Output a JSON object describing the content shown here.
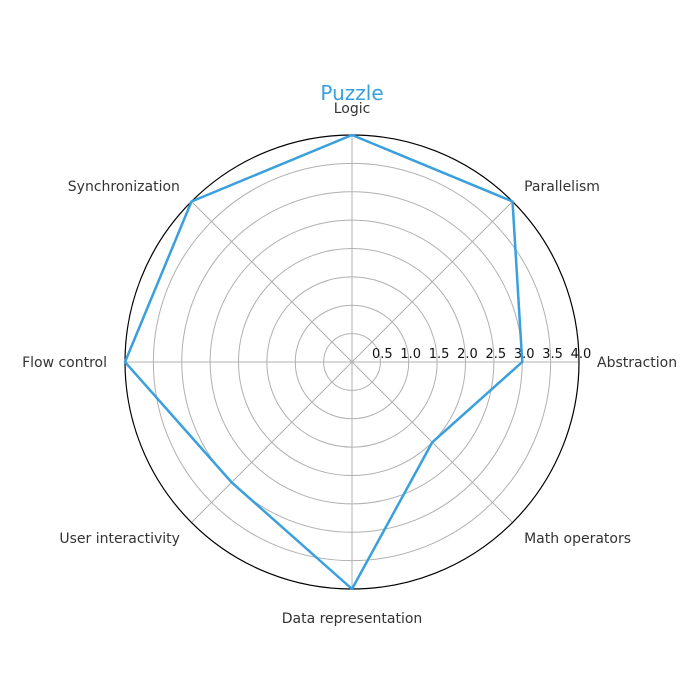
{
  "chart_data": {
    "type": "radar",
    "title": "Puzzle",
    "categories": [
      "Logic",
      "Parallelism",
      "Abstraction",
      "Math operators",
      "Data representation",
      "User interactivity",
      "Flow control",
      "Synchronization"
    ],
    "values": [
      4.0,
      4.0,
      3.0,
      2.0,
      4.0,
      3.0,
      4.0,
      4.0
    ],
    "rlim": [
      0,
      4.0
    ],
    "rticks": [
      "0.5",
      "1.0",
      "1.5",
      "2.0",
      "2.5",
      "3.0",
      "3.5",
      "4.0"
    ],
    "grid": true,
    "colors": {
      "series": "#3aa0dd",
      "title": "#3aa0dd"
    }
  }
}
